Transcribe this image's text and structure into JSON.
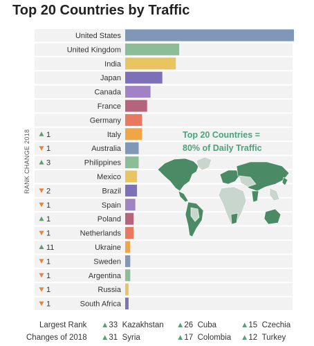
{
  "title": "Top 20 Countries by Traffic",
  "axis_label": "RANK CHANGE 2018",
  "callout": {
    "line1": "Top 20 Countries =",
    "line2": "80% of Daily Traffic"
  },
  "colors": {
    "up": "#5a9e77",
    "down": "#e8833a",
    "map_land": "#4a8b66",
    "map_land_light": "#c8d6cd",
    "accent_callout": "#4aa37a",
    "row_bg": "#f2f2f2"
  },
  "chart_data": {
    "type": "bar",
    "title": "Top 20 Countries by Traffic",
    "categories": [
      "United States",
      "United Kingdom",
      "India",
      "Japan",
      "Canada",
      "France",
      "Germany",
      "Italy",
      "Australia",
      "Philippines",
      "Mexico",
      "Brazil",
      "Spain",
      "Poland",
      "Netherlands",
      "Ukraine",
      "Sweden",
      "Argentina",
      "Russia",
      "South Africa"
    ],
    "values": [
      100,
      32,
      30,
      22,
      15,
      13,
      10,
      10,
      8,
      8,
      7,
      7,
      6,
      5,
      5,
      3,
      3,
      3,
      2,
      2
    ],
    "bar_colors": [
      "#7f98b8",
      "#8dbc98",
      "#e8c560",
      "#7e70b8",
      "#a083c4",
      "#b5647e",
      "#e8785e",
      "#f0a546",
      "#7f98b8",
      "#8dbc98",
      "#e8c560",
      "#7e70b8",
      "#a083c4",
      "#b5647e",
      "#e8785e",
      "#f0a546",
      "#7f98b8",
      "#8dbc98",
      "#e8c560",
      "#7e70b8"
    ],
    "rank_change": [
      null,
      null,
      null,
      null,
      null,
      null,
      null,
      {
        "dir": "up",
        "n": "1"
      },
      {
        "dir": "down",
        "n": "1"
      },
      {
        "dir": "up",
        "n": "3"
      },
      null,
      {
        "dir": "down",
        "n": "2"
      },
      {
        "dir": "down",
        "n": "1"
      },
      {
        "dir": "up",
        "n": "1"
      },
      {
        "dir": "down",
        "n": "1"
      },
      {
        "dir": "up",
        "n": "11"
      },
      {
        "dir": "down",
        "n": "1"
      },
      {
        "dir": "down",
        "n": "1"
      },
      {
        "dir": "down",
        "n": "1"
      },
      {
        "dir": "down",
        "n": "1"
      }
    ]
  },
  "footer": {
    "label_line1": "Largest Rank",
    "label_line2": "Changes of 2018",
    "items": [
      {
        "n": "33",
        "country": "Kazakhstan"
      },
      {
        "n": "26",
        "country": "Cuba"
      },
      {
        "n": "15",
        "country": "Czechia"
      },
      {
        "n": "31",
        "country": "Syria"
      },
      {
        "n": "17",
        "country": "Colombia"
      },
      {
        "n": "12",
        "country": "Turkey"
      }
    ]
  }
}
